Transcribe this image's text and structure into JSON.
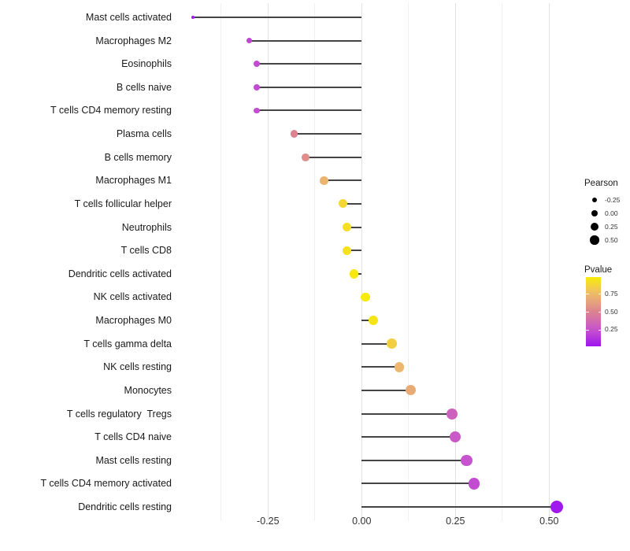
{
  "chart_data": {
    "type": "lollipop",
    "orientation": "horizontal",
    "title": "",
    "xlabel": "",
    "ylabel": "",
    "xlim": [
      -0.5,
      0.565
    ],
    "xticks": [
      -0.25,
      0,
      0.25,
      0.5
    ],
    "xtick_labels": [
      "-0.25",
      "0.00",
      "0.25",
      "0.50"
    ],
    "grid": "major and minor vertical gridlines",
    "points": [
      {
        "label": "Mast cells activated",
        "pearson": -0.45,
        "pvalue": 0.05
      },
      {
        "label": "Macrophages M2",
        "pearson": -0.3,
        "pvalue": 0.2
      },
      {
        "label": "Eosinophils",
        "pearson": -0.28,
        "pvalue": 0.22
      },
      {
        "label": "B cells naive",
        "pearson": -0.28,
        "pvalue": 0.22
      },
      {
        "label": "T cells CD4 memory resting",
        "pearson": -0.28,
        "pvalue": 0.23
      },
      {
        "label": "Plasma cells",
        "pearson": -0.18,
        "pvalue": 0.5
      },
      {
        "label": "B cells memory",
        "pearson": -0.15,
        "pvalue": 0.55
      },
      {
        "label": "Macrophages M1",
        "pearson": -0.1,
        "pvalue": 0.72
      },
      {
        "label": "T cells follicular helper",
        "pearson": -0.05,
        "pvalue": 0.88
      },
      {
        "label": "Neutrophils",
        "pearson": -0.04,
        "pvalue": 0.92
      },
      {
        "label": "T cells CD8",
        "pearson": -0.04,
        "pvalue": 0.93
      },
      {
        "label": "Dendritic cells activated",
        "pearson": -0.02,
        "pvalue": 0.96
      },
      {
        "label": "NK cells activated",
        "pearson": 0.01,
        "pvalue": 0.97
      },
      {
        "label": "Macrophages M0",
        "pearson": 0.03,
        "pvalue": 0.95
      },
      {
        "label": "T cells gamma delta",
        "pearson": 0.08,
        "pvalue": 0.85
      },
      {
        "label": "NK cells resting",
        "pearson": 0.1,
        "pvalue": 0.73
      },
      {
        "label": "Monocytes",
        "pearson": 0.13,
        "pvalue": 0.68
      },
      {
        "label": "T cells regulatory  Tregs",
        "pearson": 0.24,
        "pvalue": 0.32
      },
      {
        "label": "T cells CD4 naive",
        "pearson": 0.25,
        "pvalue": 0.28
      },
      {
        "label": "Mast cells resting",
        "pearson": 0.28,
        "pvalue": 0.25
      },
      {
        "label": "T cells CD4 memory activated",
        "pearson": 0.3,
        "pvalue": 0.22
      },
      {
        "label": "Dendritic cells resting",
        "pearson": 0.52,
        "pvalue": 0.03
      }
    ],
    "legend_size": {
      "title": "Pearson",
      "entries": [
        {
          "label": "-0.25",
          "value": -0.25
        },
        {
          "label": "0.00",
          "value": 0
        },
        {
          "label": "0.25",
          "value": 0.25
        },
        {
          "label": "0.50",
          "value": 0.5
        }
      ]
    },
    "legend_color": {
      "title": "Pvalue",
      "bar_top_value": 0.98,
      "bar_bottom_value": 0.02,
      "entries": [
        {
          "label": "0.75",
          "value": 0.75
        },
        {
          "label": "0.50",
          "value": 0.5
        },
        {
          "label": "0.25",
          "value": 0.25
        }
      ],
      "gradient_stops": [
        {
          "at": 0,
          "color": "#9A10F0"
        },
        {
          "at": 0.25,
          "color": "#C853CE"
        },
        {
          "at": 0.5,
          "color": "#DB8390"
        },
        {
          "at": 0.75,
          "color": "#EFBB6C"
        },
        {
          "at": 1,
          "color": "#F8F000"
        }
      ]
    },
    "colors": {
      "stem": "#454545",
      "grid_major": "#E3E3E3",
      "grid_minor": "#F1F1F1",
      "axis_text": "#333333",
      "label_text": "#1A1A1A",
      "legend_dot": "#000000",
      "background": "#FFFFFF"
    }
  }
}
